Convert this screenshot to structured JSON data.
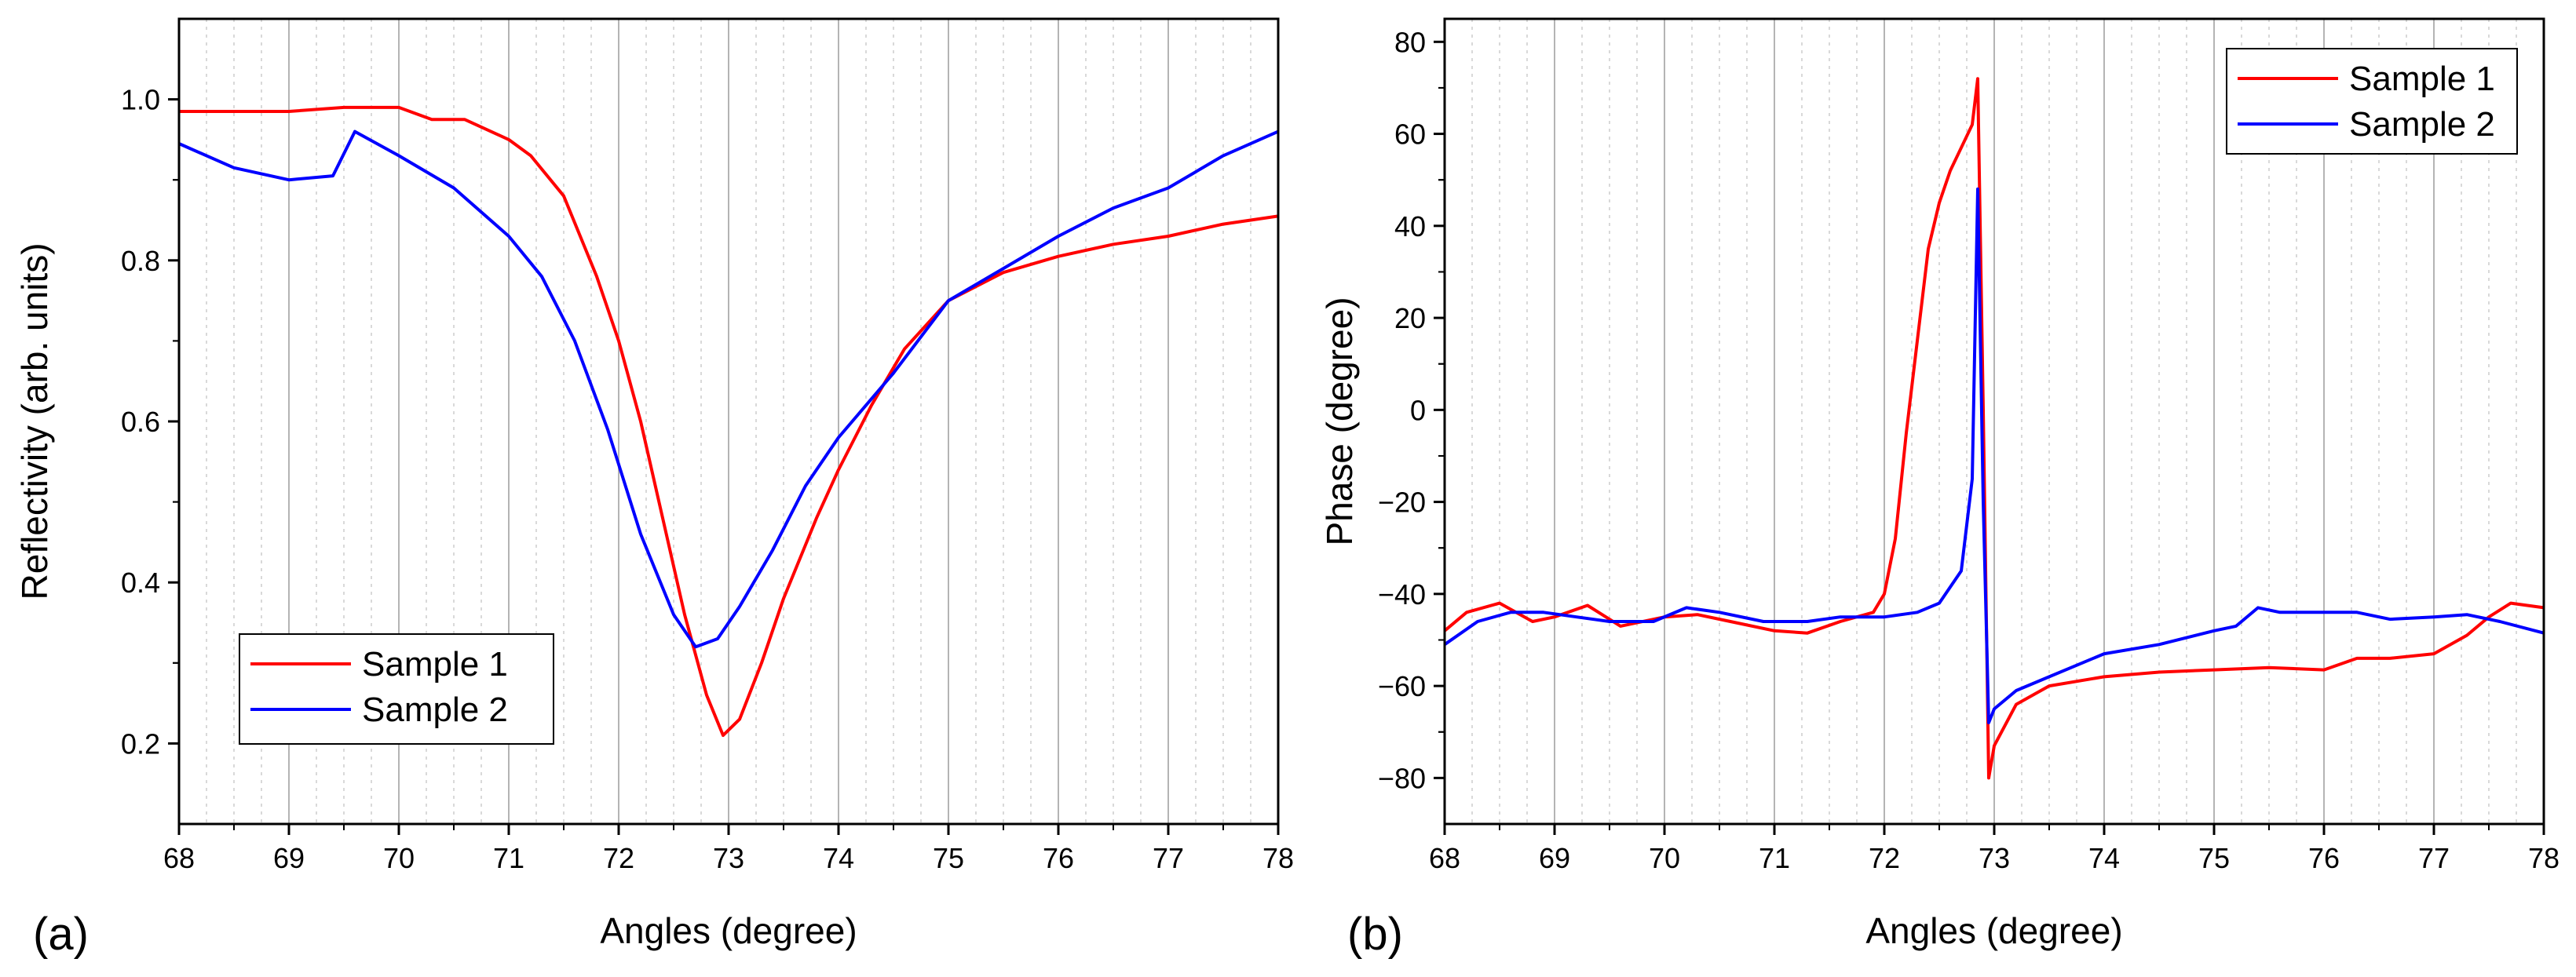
{
  "colors": {
    "sample1": "#ff0000",
    "sample2": "#0000ff",
    "grid_major": "#b4b4b4",
    "grid_minor": "#d9d9d9",
    "axis": "#000000"
  },
  "chart_data": [
    {
      "type": "line",
      "panel_label": "(a)",
      "xlabel": "Angles (degree)",
      "ylabel": "Reflectivity (arb. units)",
      "xlim": [
        68,
        78
      ],
      "ylim": [
        0.1,
        1.1
      ],
      "xticks": [
        68,
        69,
        70,
        71,
        72,
        73,
        74,
        75,
        76,
        77,
        78
      ],
      "yticks": [
        0.2,
        0.4,
        0.6,
        0.8,
        1.0
      ],
      "ytick_labels": [
        "0.2",
        "0.4",
        "0.6",
        "0.8",
        "1.0"
      ],
      "grid": "vertical",
      "legend": "lower-left",
      "series": [
        {
          "name": "Sample 1",
          "color": "#ff0000",
          "x": [
            68.0,
            68.5,
            69.0,
            69.5,
            70.0,
            70.3,
            70.6,
            71.0,
            71.2,
            71.5,
            71.8,
            72.0,
            72.2,
            72.4,
            72.6,
            72.8,
            72.95,
            73.1,
            73.3,
            73.5,
            73.8,
            74.0,
            74.3,
            74.6,
            75.0,
            75.5,
            76.0,
            76.5,
            77.0,
            77.5,
            78.0
          ],
          "y": [
            0.985,
            0.985,
            0.985,
            0.99,
            0.99,
            0.975,
            0.975,
            0.95,
            0.93,
            0.88,
            0.78,
            0.7,
            0.6,
            0.48,
            0.36,
            0.26,
            0.21,
            0.23,
            0.3,
            0.38,
            0.48,
            0.54,
            0.62,
            0.69,
            0.75,
            0.785,
            0.805,
            0.82,
            0.83,
            0.845,
            0.855
          ]
        },
        {
          "name": "Sample 2",
          "color": "#0000ff",
          "x": [
            68.0,
            68.5,
            69.0,
            69.4,
            69.6,
            70.0,
            70.5,
            71.0,
            71.3,
            71.6,
            71.9,
            72.2,
            72.5,
            72.7,
            72.9,
            73.1,
            73.4,
            73.7,
            74.0,
            74.5,
            75.0,
            75.5,
            76.0,
            76.5,
            77.0,
            77.5,
            78.0
          ],
          "y": [
            0.945,
            0.915,
            0.9,
            0.905,
            0.96,
            0.93,
            0.89,
            0.83,
            0.78,
            0.7,
            0.59,
            0.46,
            0.36,
            0.32,
            0.33,
            0.37,
            0.44,
            0.52,
            0.58,
            0.66,
            0.75,
            0.79,
            0.83,
            0.865,
            0.89,
            0.93,
            0.96
          ]
        }
      ]
    },
    {
      "type": "line",
      "panel_label": "(b)",
      "xlabel": "Angles (degree)",
      "ylabel": "Phase (degree)",
      "xlim": [
        68,
        78
      ],
      "ylim": [
        -90,
        85
      ],
      "xticks": [
        68,
        69,
        70,
        71,
        72,
        73,
        74,
        75,
        76,
        77,
        78
      ],
      "yticks": [
        -80,
        -60,
        -40,
        -20,
        0,
        20,
        40,
        60,
        80
      ],
      "ytick_labels": [
        "−80",
        "−60",
        "−40",
        "−20",
        "0",
        "20",
        "40",
        "60",
        "80"
      ],
      "grid": "vertical",
      "legend": "top-right",
      "series": [
        {
          "name": "Sample 1",
          "color": "#ff0000",
          "x": [
            68.0,
            68.2,
            68.5,
            68.8,
            69.0,
            69.3,
            69.6,
            70.0,
            70.3,
            70.6,
            71.0,
            71.3,
            71.6,
            71.9,
            72.0,
            72.1,
            72.2,
            72.3,
            72.4,
            72.5,
            72.6,
            72.7,
            72.8,
            72.85,
            72.9,
            72.95,
            73.0,
            73.2,
            73.5,
            74.0,
            74.5,
            75.0,
            75.5,
            76.0,
            76.3,
            76.6,
            77.0,
            77.3,
            77.5,
            77.7,
            78.0
          ],
          "y": [
            -48,
            -44,
            -42,
            -46,
            -45,
            -42.5,
            -47,
            -45,
            -44.5,
            -46,
            -48,
            -48.5,
            -46,
            -44,
            -40,
            -28,
            -5,
            15,
            35,
            45,
            52,
            57,
            62,
            72,
            0,
            -80,
            -73,
            -64,
            -60,
            -58,
            -57,
            -56.5,
            -56,
            -56.5,
            -54,
            -54,
            -53,
            -49,
            -45,
            -42,
            -43
          ]
        },
        {
          "name": "Sample 2",
          "color": "#0000ff",
          "x": [
            68.0,
            68.3,
            68.6,
            68.9,
            69.2,
            69.5,
            69.9,
            70.2,
            70.5,
            70.9,
            71.3,
            71.6,
            72.0,
            72.3,
            72.5,
            72.7,
            72.8,
            72.85,
            72.9,
            72.95,
            73.0,
            73.2,
            73.5,
            74.0,
            74.5,
            75.0,
            75.2,
            75.4,
            75.6,
            76.0,
            76.3,
            76.6,
            77.0,
            77.3,
            77.6,
            78.0
          ],
          "y": [
            -51,
            -46,
            -44,
            -44,
            -45,
            -46,
            -46,
            -43,
            -44,
            -46,
            -46,
            -45,
            -45,
            -44,
            -42,
            -35,
            -15,
            48,
            -20,
            -68,
            -65,
            -61,
            -58,
            -53,
            -51,
            -48,
            -47,
            -43,
            -44,
            -44,
            -44,
            -45.5,
            -45,
            -44.5,
            -46,
            -48.5
          ]
        }
      ]
    }
  ]
}
